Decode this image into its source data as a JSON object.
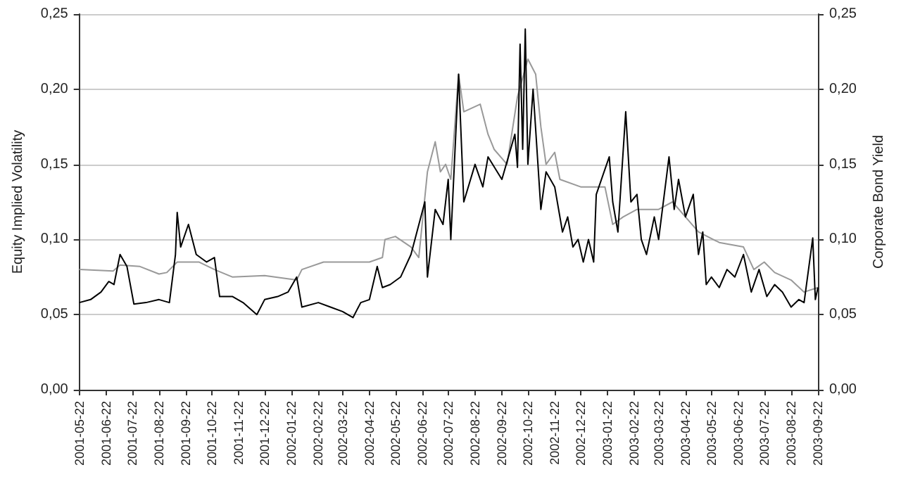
{
  "chart_data": {
    "type": "line",
    "ylabel": "Equity Implied Volatility",
    "y2label": "Corporate Bond Yield",
    "xlim": [
      "2001-05-22",
      "2003-09-22"
    ],
    "xticks": [
      "2001-05-22",
      "2001-06-22",
      "2001-07-22",
      "2001-08-22",
      "2001-09-22",
      "2001-10-22",
      "2001-11-22",
      "2001-12-22",
      "2002-01-22",
      "2002-02-22",
      "2002-03-22",
      "2002-04-22",
      "2002-05-22",
      "2002-06-22",
      "2002-07-22",
      "2002-08-22",
      "2002-09-22",
      "2002-10-22",
      "2002-11-22",
      "2002-12-22",
      "2003-01-22",
      "2003-02-22",
      "2003-03-22",
      "2003-04-22",
      "2003-05-22",
      "2003-06-22",
      "2003-07-22",
      "2003-08-22",
      "2003-09-22"
    ],
    "ylim": [
      0,
      0.25
    ],
    "yticks": [
      {
        "value": 0,
        "label": "0,00"
      },
      {
        "value": 0.05,
        "label": "0,05"
      },
      {
        "value": 0.1,
        "label": "0,10"
      },
      {
        "value": 0.15,
        "label": "0,15"
      },
      {
        "value": 0.2,
        "label": "0,20"
      },
      {
        "value": 0.25,
        "label": "0,25"
      }
    ],
    "y2lim": [
      0,
      0.25
    ],
    "y2ticks": [
      {
        "value": 0,
        "label": "0,00"
      },
      {
        "value": 0.05,
        "label": "0,05"
      },
      {
        "value": 0.1,
        "label": "0,10"
      },
      {
        "value": 0.15,
        "label": "0,15"
      },
      {
        "value": 0.2,
        "label": "0,20"
      },
      {
        "value": 0.25,
        "label": "0,25"
      }
    ],
    "grid": "y",
    "marker": "none",
    "line_style": "solid",
    "series": [
      {
        "color": "#999999",
        "x": [
          "2001-05-22",
          "2001-06-30",
          "2001-07-08",
          "2001-07-31",
          "2001-08-22",
          "2001-08-31",
          "2001-09-12",
          "2001-10-07",
          "2001-10-25",
          "2001-11-15",
          "2001-12-22",
          "2002-01-28",
          "2002-02-03",
          "2002-02-28",
          "2002-04-22",
          "2002-05-07",
          "2002-05-10",
          "2002-05-22",
          "2002-06-09",
          "2002-06-18",
          "2002-06-28",
          "2002-07-07",
          "2002-07-13",
          "2002-07-19",
          "2002-07-25",
          "2002-08-03",
          "2002-08-09",
          "2002-08-28",
          "2002-09-06",
          "2002-09-13",
          "2002-09-28",
          "2002-10-10",
          "2002-10-22",
          "2002-10-31",
          "2002-11-06",
          "2002-11-12",
          "2002-11-22",
          "2002-11-28",
          "2002-12-22",
          "2003-01-19",
          "2003-01-28",
          "2003-02-09",
          "2003-02-25",
          "2003-03-22",
          "2003-04-07",
          "2003-04-22",
          "2003-05-07",
          "2003-05-31",
          "2003-06-28",
          "2003-07-10",
          "2003-07-22",
          "2003-08-03",
          "2003-08-22",
          "2003-09-06",
          "2003-09-22"
        ],
        "values": [
          0.08,
          0.079,
          0.083,
          0.082,
          0.077,
          0.078,
          0.085,
          0.085,
          0.08,
          0.075,
          0.076,
          0.073,
          0.08,
          0.085,
          0.085,
          0.088,
          0.1,
          0.102,
          0.095,
          0.088,
          0.145,
          0.165,
          0.145,
          0.15,
          0.14,
          0.21,
          0.185,
          0.19,
          0.17,
          0.16,
          0.15,
          0.195,
          0.22,
          0.21,
          0.175,
          0.15,
          0.158,
          0.14,
          0.135,
          0.135,
          0.11,
          0.115,
          0.12,
          0.12,
          0.125,
          0.115,
          0.105,
          0.098,
          0.095,
          0.08,
          0.085,
          0.078,
          0.073,
          0.065,
          0.068
        ]
      },
      {
        "color": "#000000",
        "x": [
          "2001-05-22",
          "2001-06-04",
          "2001-06-16",
          "2001-06-25",
          "2001-07-01",
          "2001-07-08",
          "2001-07-16",
          "2001-07-24",
          "2001-08-07",
          "2001-08-22",
          "2001-09-03",
          "2001-09-10",
          "2001-09-12",
          "2001-09-16",
          "2001-09-25",
          "2001-10-04",
          "2001-10-16",
          "2001-10-25",
          "2001-10-31",
          "2001-11-15",
          "2001-11-27",
          "2001-12-13",
          "2001-12-22",
          "2002-01-06",
          "2002-01-18",
          "2002-01-28",
          "2002-02-03",
          "2002-02-22",
          "2002-03-08",
          "2002-03-22",
          "2002-04-03",
          "2002-04-12",
          "2002-04-22",
          "2002-05-01",
          "2002-05-07",
          "2002-05-16",
          "2002-05-28",
          "2002-06-09",
          "2002-06-25",
          "2002-06-28",
          "2002-07-07",
          "2002-07-16",
          "2002-07-22",
          "2002-07-25",
          "2002-08-03",
          "2002-08-09",
          "2002-08-22",
          "2002-08-31",
          "2002-09-06",
          "2002-09-22",
          "2002-10-07",
          "2002-10-10",
          "2002-10-13",
          "2002-10-16",
          "2002-10-19",
          "2002-10-22",
          "2002-10-28",
          "2002-11-06",
          "2002-11-12",
          "2002-11-22",
          "2002-12-01",
          "2002-12-07",
          "2002-12-13",
          "2002-12-19",
          "2002-12-25",
          "2002-12-31",
          "2003-01-06",
          "2003-01-09",
          "2003-01-24",
          "2003-01-28",
          "2003-02-03",
          "2003-02-12",
          "2003-02-18",
          "2003-02-25",
          "2003-03-02",
          "2003-03-08",
          "2003-03-17",
          "2003-03-22",
          "2003-04-03",
          "2003-04-09",
          "2003-04-14",
          "2003-04-22",
          "2003-05-01",
          "2003-05-07",
          "2003-05-12",
          "2003-05-16",
          "2003-05-22",
          "2003-05-31",
          "2003-06-09",
          "2003-06-18",
          "2003-06-28",
          "2003-07-07",
          "2003-07-16",
          "2003-07-25",
          "2003-08-03",
          "2003-08-12",
          "2003-08-22",
          "2003-08-31",
          "2003-09-06",
          "2003-09-16",
          "2003-09-19",
          "2003-09-22"
        ],
        "values": [
          0.058,
          0.06,
          0.065,
          0.072,
          0.07,
          0.09,
          0.082,
          0.057,
          0.058,
          0.06,
          0.058,
          0.09,
          0.118,
          0.095,
          0.11,
          0.09,
          0.085,
          0.088,
          0.062,
          0.062,
          0.058,
          0.05,
          0.06,
          0.062,
          0.065,
          0.075,
          0.055,
          0.058,
          0.055,
          0.052,
          0.048,
          0.058,
          0.06,
          0.082,
          0.068,
          0.07,
          0.075,
          0.09,
          0.125,
          0.075,
          0.12,
          0.11,
          0.14,
          0.1,
          0.21,
          0.125,
          0.15,
          0.135,
          0.155,
          0.14,
          0.17,
          0.148,
          0.23,
          0.16,
          0.24,
          0.15,
          0.2,
          0.12,
          0.145,
          0.135,
          0.105,
          0.115,
          0.095,
          0.1,
          0.085,
          0.1,
          0.085,
          0.13,
          0.155,
          0.125,
          0.105,
          0.185,
          0.125,
          0.13,
          0.1,
          0.09,
          0.115,
          0.1,
          0.155,
          0.12,
          0.14,
          0.115,
          0.13,
          0.09,
          0.105,
          0.07,
          0.075,
          0.068,
          0.08,
          0.075,
          0.09,
          0.065,
          0.08,
          0.062,
          0.07,
          0.065,
          0.055,
          0.06,
          0.058,
          0.101,
          0.06,
          0.068
        ]
      }
    ]
  }
}
